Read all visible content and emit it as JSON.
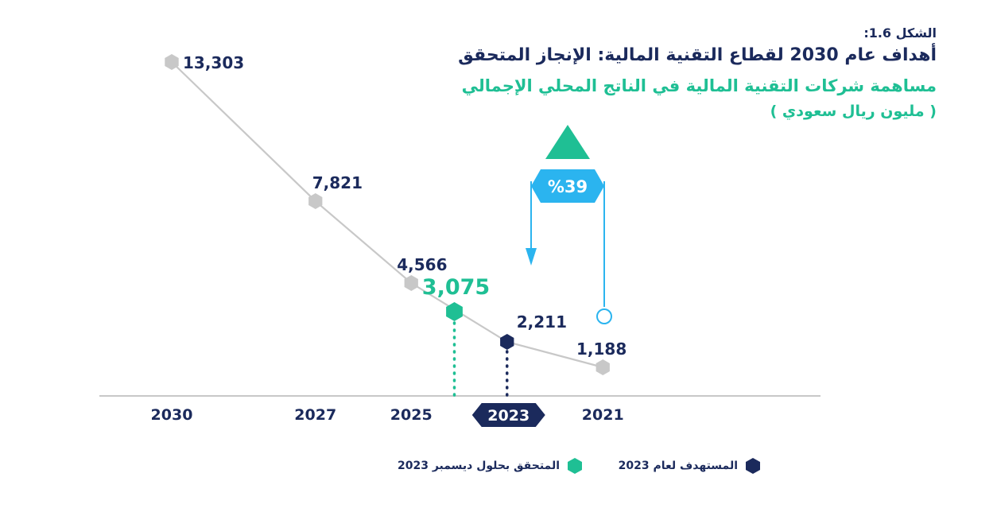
{
  "figure_label": "الشكل 1.6:",
  "title": "أهداف عام 2030 لقطاع التقنية المالية: الإنجاز المتحقق",
  "subtitle": "مساهمة شركات التقنية المالية في الناتج المحلي الإجمالي",
  "unit_label": "( مليون ريال سعودي )",
  "colors": {
    "navy": "#1b2a5c",
    "green": "#1fbf94",
    "blue": "#2bb4ef",
    "grey": "#c8c8c8"
  },
  "chart_data": {
    "type": "line",
    "categories": [
      "2030",
      "2027",
      "2025",
      "2023",
      "2021"
    ],
    "series": [
      {
        "name": "",
        "values": [
          13303,
          7821,
          4566,
          2211,
          1188
        ]
      }
    ],
    "value_labels": [
      "13,303",
      "7,821",
      "4,566",
      "2,211",
      "1,188"
    ],
    "actual_2023": {
      "value": 3075,
      "label": "3,075"
    },
    "growth_badge": "%39",
    "highlighted_category": "2023",
    "legend_position": "bottom",
    "ylim": [
      0,
      14500
    ]
  },
  "legend": {
    "target": "المستهدف لعام 2023",
    "actual": "المتحقق بحلول ديسمبر 2023"
  }
}
